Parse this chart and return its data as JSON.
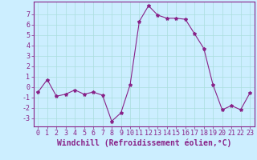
{
  "x": [
    0,
    1,
    2,
    3,
    4,
    5,
    6,
    7,
    8,
    9,
    10,
    11,
    12,
    13,
    14,
    15,
    16,
    17,
    18,
    19,
    20,
    21,
    22,
    23
  ],
  "y": [
    -0.5,
    0.7,
    -0.9,
    -0.7,
    -0.3,
    -0.7,
    -0.5,
    -0.8,
    -3.3,
    -2.5,
    0.2,
    6.3,
    7.8,
    6.9,
    6.6,
    6.6,
    6.5,
    5.1,
    3.7,
    0.2,
    -2.2,
    -1.8,
    -2.2,
    -0.6
  ],
  "line_color": "#882288",
  "marker": "*",
  "marker_size": 3,
  "bg_color": "#cceeff",
  "grid_color": "#aadddd",
  "xlabel": "Windchill (Refroidissement éolien,°C)",
  "xlabel_color": "#882288",
  "xlabel_fontsize": 7,
  "ylabel_ticks": [
    -3,
    -2,
    -1,
    0,
    1,
    2,
    3,
    4,
    5,
    6,
    7
  ],
  "xtick_labels": [
    "0",
    "1",
    "2",
    "3",
    "4",
    "5",
    "6",
    "7",
    "8",
    "9",
    "10",
    "11",
    "12",
    "13",
    "14",
    "15",
    "16",
    "17",
    "18",
    "19",
    "20",
    "21",
    "22",
    "23"
  ],
  "ylim": [
    -3.8,
    8.2
  ],
  "xlim": [
    -0.5,
    23.5
  ],
  "tick_color": "#882288",
  "tick_fontsize": 6,
  "spine_color": "#882288"
}
